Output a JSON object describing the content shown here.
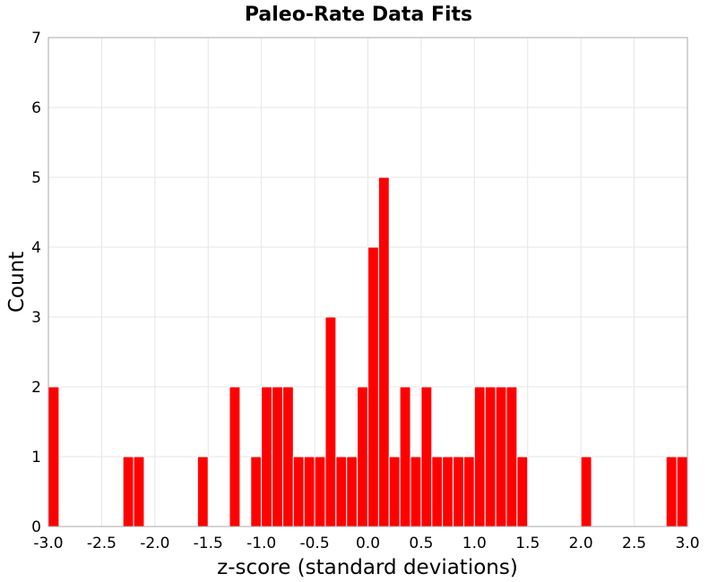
{
  "chart_data": {
    "type": "bar",
    "title": "Paleo-Rate Data Fits",
    "xlabel": "z-score (standard deviations)",
    "ylabel": "Count",
    "xlim": [
      -3.0,
      3.0
    ],
    "ylim": [
      0,
      7
    ],
    "grid": true,
    "bin_width": 0.1,
    "bar_color": "#ff0000",
    "x_ticks": [
      "-3.0",
      "-2.5",
      "-2.0",
      "-1.5",
      "-1.0",
      "-0.5",
      "0.0",
      "0.5",
      "1.0",
      "1.5",
      "2.0",
      "2.5",
      "3.0"
    ],
    "y_ticks": [
      "0",
      "1",
      "2",
      "3",
      "4",
      "5",
      "6",
      "7"
    ],
    "bins": [
      {
        "x0": -3.0,
        "count": 2
      },
      {
        "x0": -2.3,
        "count": 1
      },
      {
        "x0": -2.2,
        "count": 1
      },
      {
        "x0": -1.6,
        "count": 1
      },
      {
        "x0": -1.3,
        "count": 2
      },
      {
        "x0": -1.1,
        "count": 1
      },
      {
        "x0": -1.0,
        "count": 2
      },
      {
        "x0": -0.9,
        "count": 2
      },
      {
        "x0": -0.8,
        "count": 2
      },
      {
        "x0": -0.7,
        "count": 1
      },
      {
        "x0": -0.6,
        "count": 1
      },
      {
        "x0": -0.5,
        "count": 1
      },
      {
        "x0": -0.4,
        "count": 3
      },
      {
        "x0": -0.3,
        "count": 1
      },
      {
        "x0": -0.2,
        "count": 1
      },
      {
        "x0": -0.1,
        "count": 2
      },
      {
        "x0": 0.0,
        "count": 4
      },
      {
        "x0": 0.1,
        "count": 5
      },
      {
        "x0": 0.2,
        "count": 1
      },
      {
        "x0": 0.3,
        "count": 2
      },
      {
        "x0": 0.4,
        "count": 1
      },
      {
        "x0": 0.5,
        "count": 2
      },
      {
        "x0": 0.6,
        "count": 1
      },
      {
        "x0": 0.7,
        "count": 1
      },
      {
        "x0": 0.8,
        "count": 1
      },
      {
        "x0": 0.9,
        "count": 1
      },
      {
        "x0": 1.0,
        "count": 2
      },
      {
        "x0": 1.1,
        "count": 2
      },
      {
        "x0": 1.2,
        "count": 2
      },
      {
        "x0": 1.3,
        "count": 2
      },
      {
        "x0": 1.4,
        "count": 1
      },
      {
        "x0": 2.0,
        "count": 1
      },
      {
        "x0": 2.8,
        "count": 1
      },
      {
        "x0": 2.9,
        "count": 1
      }
    ]
  }
}
